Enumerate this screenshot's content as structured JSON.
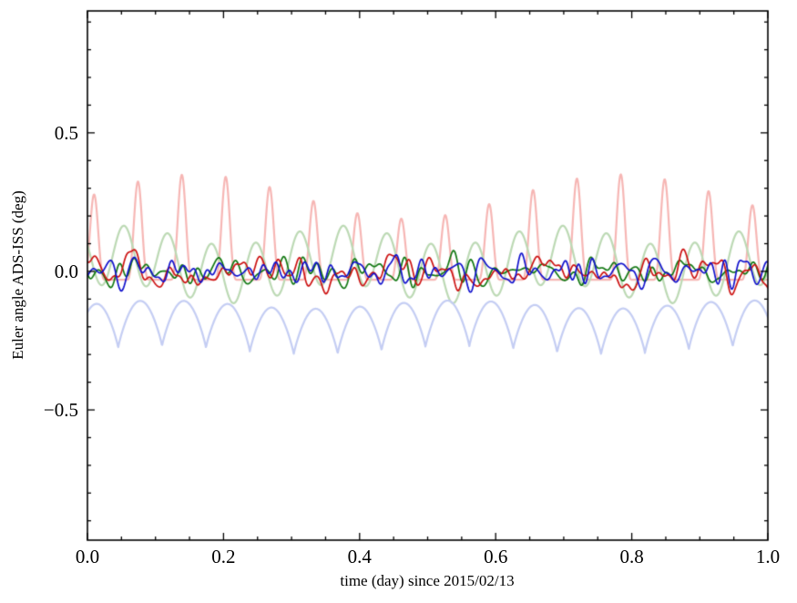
{
  "chart_data": {
    "type": "line",
    "title": "",
    "xlabel": "time (day) since 2015/02/13",
    "ylabel": "Euler angle ADS-ISS (deg)",
    "xlim": [
      0.0,
      1.0
    ],
    "ylim": [
      -0.97,
      0.94
    ],
    "grid": false,
    "legend": "none",
    "xticks": {
      "values": [
        0.0,
        0.2,
        0.4,
        0.6,
        0.8,
        1.0
      ],
      "labels": [
        "0.0",
        "0.2",
        "0.4",
        "0.6",
        "0.8",
        "1.0"
      ],
      "minor_step": 0.05
    },
    "yticks": {
      "values": [
        -0.5,
        0.0,
        0.5
      ],
      "labels": [
        "−0.5",
        "0.0",
        "0.5"
      ],
      "minor_step": 0.1
    },
    "axis_color": "#000000",
    "axis_line_width": 1.6,
    "description": "Six Euler-angle time series over one day starting 2015/02/13. Three pale reference curves oscillate at the ISS orbital frequency (~15.5 cycles/day): pale red periodic peaks reaching ~0.2-0.35 deg, pale green sinusoid ~+/-0.12 deg about +0.03, pale blue scalloped curve between ~-0.29 and ~-0.12 deg. Three saturated noisy residual curves (red, green, blue) fluctuate about 0.0 within ~+/-0.08 deg.",
    "series": [
      {
        "name": "light-red-orbital-peaks",
        "color": "#f6b6b4",
        "width": 2.2,
        "model": "peaks",
        "params": {
          "mean": -0.03,
          "amp": 0.3,
          "amp_mod": 0.08,
          "mod_freq": 1.6,
          "freq": 15.5,
          "phase": 0.1,
          "sharpness": 3
        },
        "approx_y_range": [
          -0.05,
          0.38
        ]
      },
      {
        "name": "light-green-orbital-sine",
        "color": "#bcd9b4",
        "width": 2.2,
        "model": "sine2",
        "params": {
          "mean": 0.025,
          "amp": 0.105,
          "freq": 15.5,
          "phase": 0.42,
          "amp2": 0.035,
          "freq2": 3.1,
          "phase2": 0.1
        },
        "approx_y_range": [
          -0.11,
          0.17
        ]
      },
      {
        "name": "light-blue-orbital-scallop",
        "color": "#c4cdf3",
        "width": 2.2,
        "model": "scallop",
        "params": {
          "mean": -0.285,
          "amp": 0.165,
          "freq": 7.75,
          "phase": 0.15,
          "power": 0.85,
          "wobble_amp": 0.015,
          "wobble_freq": 2.3
        },
        "approx_y_range": [
          -0.3,
          -0.1
        ]
      },
      {
        "name": "green-residual",
        "color": "#117711",
        "width": 1.7,
        "model": "noise",
        "params": {
          "mean": 0.0,
          "amp": 0.075,
          "seed": 11,
          "components": 14
        },
        "approx_y_range": [
          -0.08,
          0.12
        ]
      },
      {
        "name": "red-residual",
        "color": "#cc1111",
        "width": 1.7,
        "model": "noise",
        "params": {
          "mean": -0.005,
          "amp": 0.085,
          "seed": 7,
          "components": 14
        },
        "approx_y_range": [
          -0.12,
          0.1
        ]
      },
      {
        "name": "blue-residual",
        "color": "#1111cc",
        "width": 1.7,
        "model": "noise",
        "params": {
          "mean": 0.0,
          "amp": 0.075,
          "seed": 3,
          "components": 14
        },
        "approx_y_range": [
          -0.1,
          0.08
        ]
      }
    ]
  }
}
